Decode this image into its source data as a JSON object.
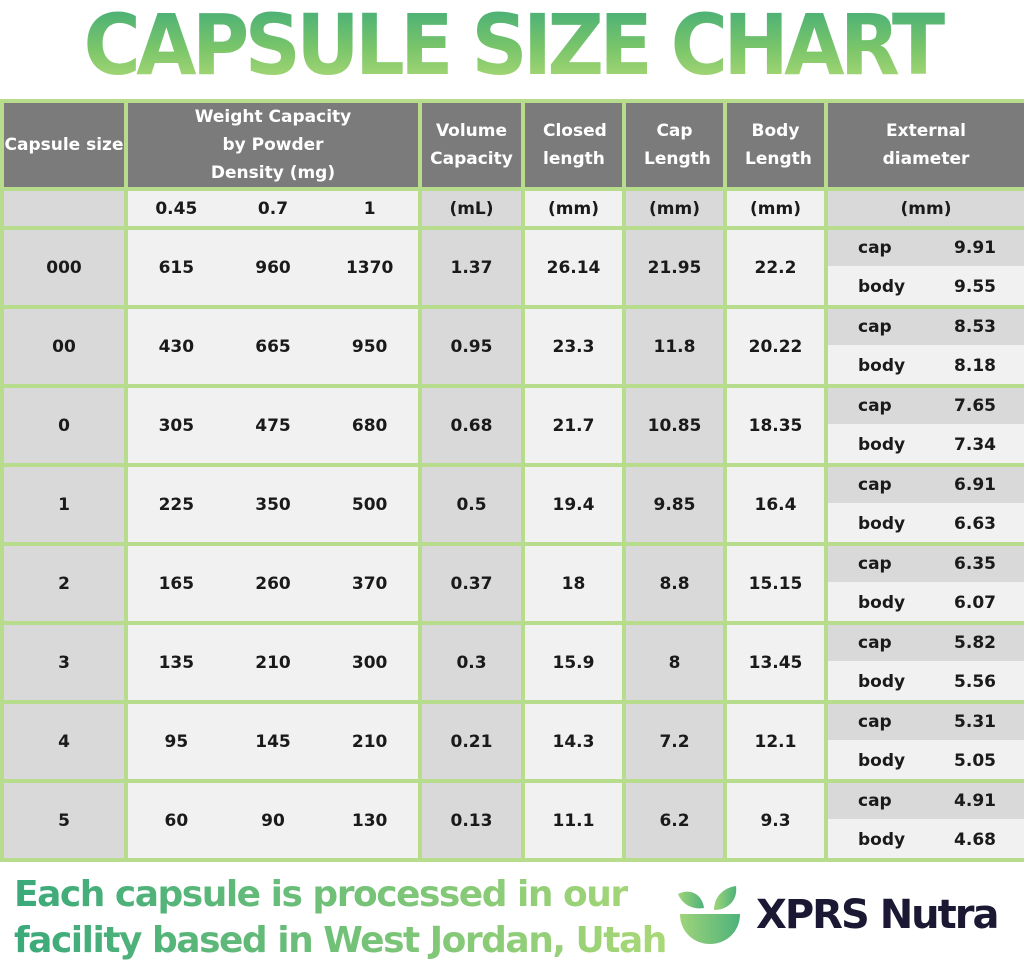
{
  "title": "CAPSULE SIZE CHART",
  "chart_data": {
    "type": "table",
    "title": "CAPSULE SIZE CHART",
    "headers": {
      "size": "Capsule size",
      "weight": "Weight Capacity by Powder Density (mg)",
      "volume": "Volume Capacity",
      "closed": "Closed length",
      "cap": "Cap Length",
      "body": "Body Length",
      "external": "External diameter"
    },
    "units": {
      "densities": [
        "0.45",
        "0.7",
        "1"
      ],
      "volume": "(mL)",
      "closed": "(mm)",
      "cap": "(mm)",
      "body": "(mm)",
      "external": "(mm)"
    },
    "ext_labels": {
      "cap": "cap",
      "body": "body"
    },
    "rows": [
      {
        "size": "000",
        "w": [
          "615",
          "960",
          "1370"
        ],
        "volume": "1.37",
        "closed": "26.14",
        "cap": "21.95",
        "body": "22.2",
        "ext_cap": "9.91",
        "ext_body": "9.55"
      },
      {
        "size": "00",
        "w": [
          "430",
          "665",
          "950"
        ],
        "volume": "0.95",
        "closed": "23.3",
        "cap": "11.8",
        "body": "20.22",
        "ext_cap": "8.53",
        "ext_body": "8.18"
      },
      {
        "size": "0",
        "w": [
          "305",
          "475",
          "680"
        ],
        "volume": "0.68",
        "closed": "21.7",
        "cap": "10.85",
        "body": "18.35",
        "ext_cap": "7.65",
        "ext_body": "7.34"
      },
      {
        "size": "1",
        "w": [
          "225",
          "350",
          "500"
        ],
        "volume": "0.5",
        "closed": "19.4",
        "cap": "9.85",
        "body": "16.4",
        "ext_cap": "6.91",
        "ext_body": "6.63"
      },
      {
        "size": "2",
        "w": [
          "165",
          "260",
          "370"
        ],
        "volume": "0.37",
        "closed": "18",
        "cap": "8.8",
        "body": "15.15",
        "ext_cap": "6.35",
        "ext_body": "6.07"
      },
      {
        "size": "3",
        "w": [
          "135",
          "210",
          "300"
        ],
        "volume": "0.3",
        "closed": "15.9",
        "cap": "8",
        "body": "13.45",
        "ext_cap": "5.82",
        "ext_body": "5.56"
      },
      {
        "size": "4",
        "w": [
          "95",
          "145",
          "210"
        ],
        "volume": "0.21",
        "closed": "14.3",
        "cap": "7.2",
        "body": "12.1",
        "ext_cap": "5.31",
        "ext_body": "5.05"
      },
      {
        "size": "5",
        "w": [
          "60",
          "90",
          "130"
        ],
        "volume": "0.13",
        "closed": "11.1",
        "cap": "6.2",
        "body": "9.3",
        "ext_cap": "4.91",
        "ext_body": "4.68"
      }
    ]
  },
  "footer": {
    "line1": "Each capsule is processed in our",
    "line2": "facility based in West Jordan, Utah"
  },
  "brand": {
    "name": "XPRS Nutra",
    "logo_icon": "leaf-bowl-icon"
  },
  "colors": {
    "accent_green": "#7cc66a",
    "border_green": "#b6dc8c",
    "header_gray": "#7b7b7b",
    "brand_navy": "#1a1833"
  }
}
